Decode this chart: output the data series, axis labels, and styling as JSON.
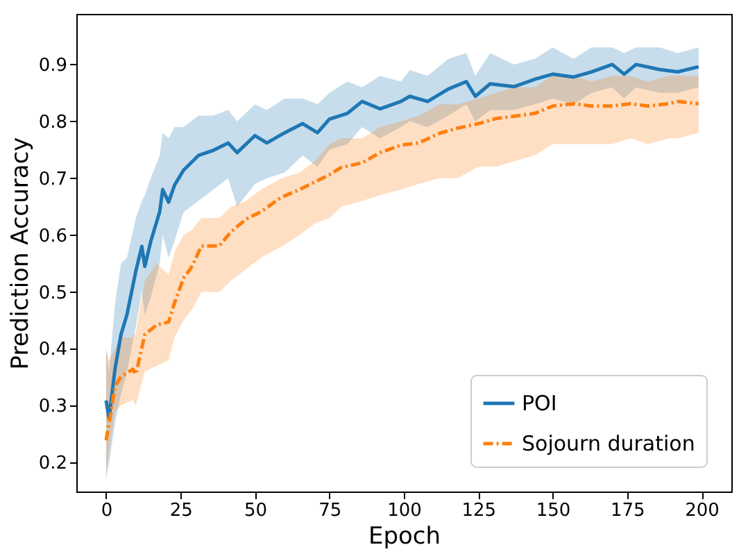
{
  "chart_data": {
    "type": "line",
    "xlabel": "Epoch",
    "ylabel": "Prediction Accuracy",
    "xlim": [
      -10,
      210
    ],
    "ylim": [
      0.149,
      0.989
    ],
    "xticks": [
      0,
      25,
      50,
      75,
      100,
      125,
      150,
      175,
      200
    ],
    "yticks": [
      0.2,
      0.3,
      0.4,
      0.5,
      0.6,
      0.7,
      0.8,
      0.9
    ],
    "grid": false,
    "legend": "bottom right",
    "marker": "none",
    "series": [
      {
        "name": "POI",
        "color": "#1f77b4",
        "line_style": "solid",
        "x": [
          0,
          1,
          3,
          5,
          7,
          10,
          12,
          13,
          15,
          18,
          19,
          21,
          23,
          26,
          31,
          36,
          41,
          44,
          50,
          54,
          60,
          66,
          71,
          75,
          81,
          86,
          92,
          99,
          102,
          108,
          115,
          121,
          124,
          129,
          137,
          144,
          150,
          157,
          163,
          170,
          174,
          178,
          186,
          192,
          199
        ],
        "values": [
          0.309,
          0.278,
          0.365,
          0.425,
          0.46,
          0.537,
          0.58,
          0.545,
          0.589,
          0.641,
          0.68,
          0.658,
          0.688,
          0.714,
          0.74,
          0.749,
          0.762,
          0.745,
          0.775,
          0.762,
          0.78,
          0.796,
          0.78,
          0.804,
          0.814,
          0.835,
          0.822,
          0.835,
          0.844,
          0.835,
          0.857,
          0.87,
          0.844,
          0.866,
          0.861,
          0.874,
          0.883,
          0.878,
          0.887,
          0.9,
          0.883,
          0.9,
          0.891,
          0.887,
          0.896
        ],
        "lower": [
          0.17,
          0.2,
          0.27,
          0.32,
          0.36,
          0.44,
          0.5,
          0.46,
          0.49,
          0.55,
          0.6,
          0.56,
          0.59,
          0.64,
          0.66,
          0.68,
          0.7,
          0.65,
          0.69,
          0.7,
          0.71,
          0.74,
          0.72,
          0.75,
          0.76,
          0.79,
          0.77,
          0.79,
          0.8,
          0.79,
          0.81,
          0.83,
          0.8,
          0.82,
          0.82,
          0.83,
          0.84,
          0.83,
          0.85,
          0.86,
          0.84,
          0.86,
          0.85,
          0.85,
          0.86
        ],
        "upper": [
          0.4,
          0.36,
          0.48,
          0.55,
          0.56,
          0.63,
          0.66,
          0.67,
          0.7,
          0.74,
          0.78,
          0.77,
          0.79,
          0.79,
          0.81,
          0.81,
          0.82,
          0.8,
          0.83,
          0.82,
          0.84,
          0.84,
          0.83,
          0.85,
          0.87,
          0.86,
          0.88,
          0.87,
          0.89,
          0.88,
          0.91,
          0.92,
          0.88,
          0.92,
          0.9,
          0.91,
          0.93,
          0.91,
          0.93,
          0.93,
          0.92,
          0.93,
          0.93,
          0.92,
          0.93
        ]
      },
      {
        "name": "Sojourn duration",
        "color": "#ff7f0e",
        "line_style": "dashdot",
        "x": [
          0,
          1,
          3,
          5,
          9,
          10,
          13,
          17,
          21,
          23,
          26,
          29,
          32,
          38,
          42,
          47,
          52,
          59,
          65,
          70,
          75,
          79,
          86,
          92,
          99,
          105,
          112,
          118,
          125,
          131,
          137,
          144,
          150,
          157,
          163,
          170,
          176,
          182,
          189,
          192,
          199
        ],
        "values": [
          0.239,
          0.269,
          0.334,
          0.351,
          0.364,
          0.355,
          0.425,
          0.442,
          0.447,
          0.481,
          0.524,
          0.546,
          0.581,
          0.581,
          0.606,
          0.628,
          0.641,
          0.667,
          0.68,
          0.693,
          0.706,
          0.719,
          0.727,
          0.745,
          0.758,
          0.762,
          0.779,
          0.788,
          0.796,
          0.805,
          0.809,
          0.814,
          0.827,
          0.831,
          0.827,
          0.827,
          0.831,
          0.827,
          0.831,
          0.835,
          0.831
        ],
        "lower": [
          0.18,
          0.22,
          0.29,
          0.3,
          0.31,
          0.3,
          0.36,
          0.37,
          0.38,
          0.42,
          0.45,
          0.47,
          0.5,
          0.5,
          0.52,
          0.54,
          0.56,
          0.58,
          0.6,
          0.62,
          0.63,
          0.65,
          0.66,
          0.67,
          0.68,
          0.69,
          0.7,
          0.7,
          0.72,
          0.72,
          0.73,
          0.74,
          0.76,
          0.76,
          0.76,
          0.76,
          0.77,
          0.76,
          0.77,
          0.77,
          0.78
        ],
        "upper": [
          0.4,
          0.38,
          0.4,
          0.42,
          0.42,
          0.43,
          0.52,
          0.55,
          0.53,
          0.57,
          0.6,
          0.61,
          0.63,
          0.63,
          0.65,
          0.66,
          0.68,
          0.7,
          0.71,
          0.73,
          0.76,
          0.77,
          0.77,
          0.79,
          0.8,
          0.81,
          0.83,
          0.83,
          0.84,
          0.85,
          0.86,
          0.86,
          0.88,
          0.88,
          0.87,
          0.88,
          0.88,
          0.87,
          0.88,
          0.88,
          0.88
        ]
      }
    ]
  }
}
